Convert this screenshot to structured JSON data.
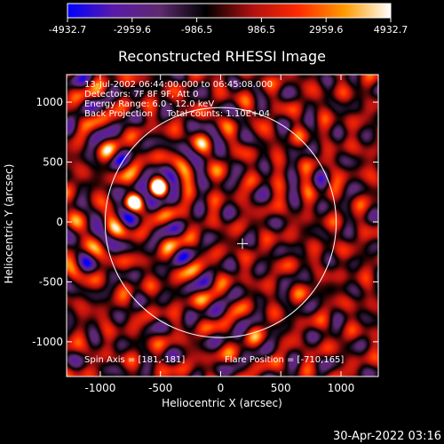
{
  "chart_data": {
    "type": "heatmap",
    "title": "Reconstructed RHESSI Image",
    "xlabel": "Heliocentric X (arcsec)",
    "ylabel": "Heliocentric Y (arcsec)",
    "xlim": [
      -1280,
      1310
    ],
    "ylim": [
      -1290,
      1230
    ],
    "xticks": [
      -1000,
      -500,
      0,
      500,
      1000
    ],
    "yticks": [
      -1000,
      -500,
      0,
      500,
      1000
    ],
    "colorbar": {
      "min": -4932.7,
      "max": 4932.7,
      "ticks": [
        "-4932.7",
        "-2959.6",
        "-986.5",
        "986.5",
        "2959.6",
        "4932.7"
      ],
      "stops": [
        "#0000ff",
        "#5a1aa8",
        "#5e2a6e",
        "#000000",
        "#b01010",
        "#ff2a00",
        "#ff9a00",
        "#ffffff"
      ]
    },
    "info_lines": [
      "13-Jul-2002 06:44:00.000 to 06:45:08.000",
      "Detectors: 7F 8F 9F, Att 0",
      "Energy Range: 6.0 - 12.0 keV",
      "Back Projection     Total counts: 1.10E+04"
    ],
    "spin_axis_label": "Spin Axis = [181,-181]",
    "flare_position_label": "Flare Position = [-710,165]",
    "solar_limb": {
      "center": [
        0,
        -5
      ],
      "radius_arcsec": 960
    },
    "spin_axis_marker": [
      181,
      -181
    ],
    "sources": [
      {
        "x": -720,
        "y": 165,
        "peak": 4932.7
      },
      {
        "x": -520,
        "y": 285,
        "peak": 4700
      }
    ]
  },
  "footer": {
    "timestamp": "30-Apr-2022 03:16"
  }
}
